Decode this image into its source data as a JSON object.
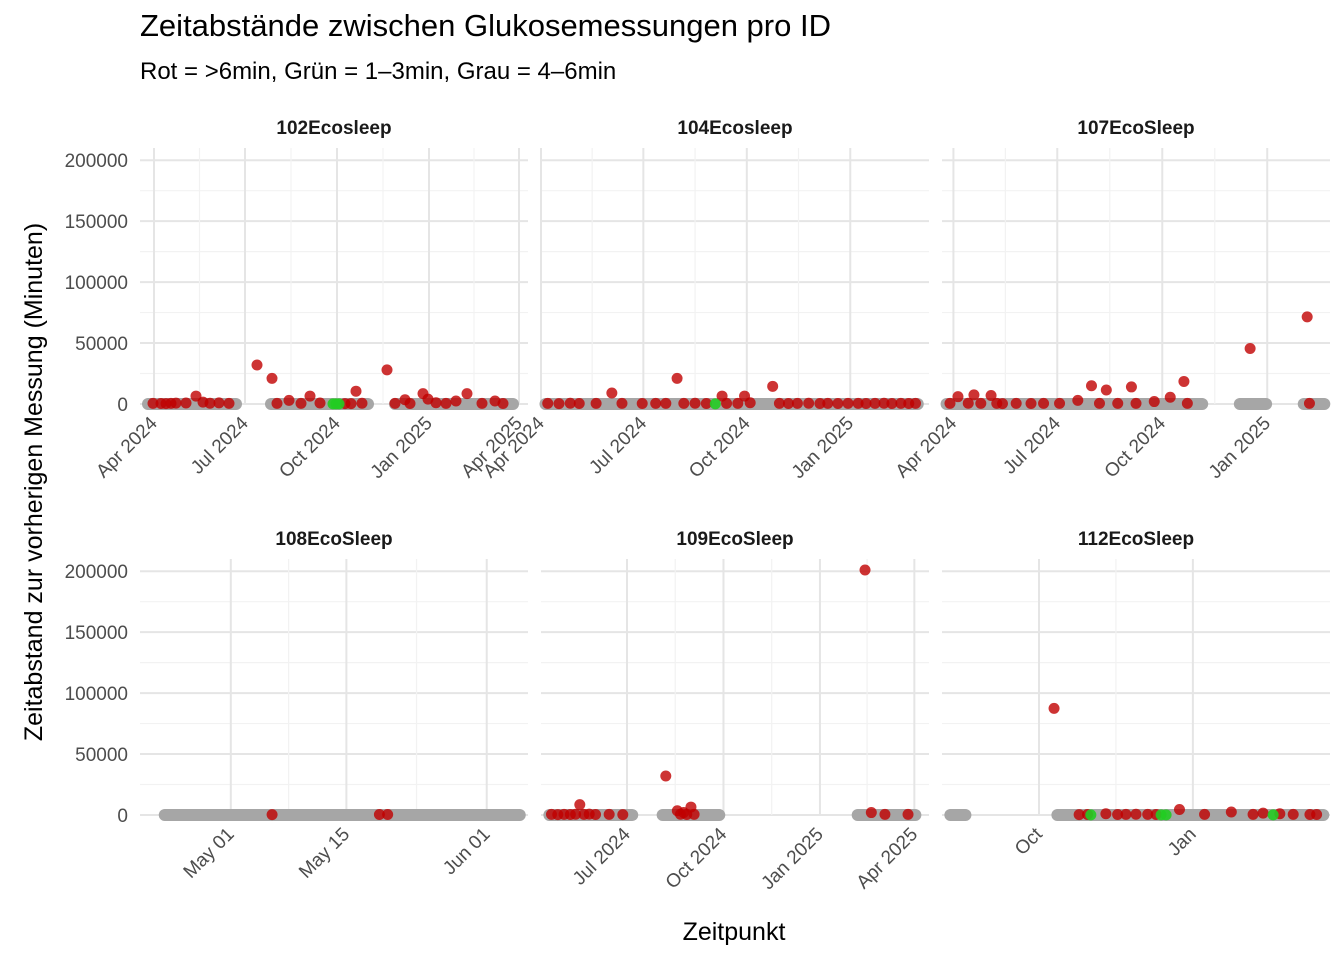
{
  "title": "Zeitabstände zwischen Glukosemessungen pro ID",
  "subtitle": "Rot = >6min, Grün = 1–3min, Grau = 4–6min",
  "xlabel": "Zeitpunkt",
  "ylabel": "Zeitabstand zur vorherigen Messung (Minuten)",
  "colors": {
    "red": "#c00000",
    "green": "#22cc22",
    "grey": "#a6a6a6",
    "grid_major": "#e5e5e5",
    "grid_minor": "#f2f2f2"
  },
  "chart_data": [
    {
      "type": "scatter",
      "id": "102Ecosleep",
      "ylim": [
        0,
        210000
      ],
      "y_ticks": [
        0,
        50000,
        100000,
        150000,
        200000
      ],
      "x_ticks": [
        {
          "date": "2024-04-01",
          "label": "Apr 2024"
        },
        {
          "date": "2024-07-01",
          "label": "Jul 2024"
        },
        {
          "date": "2024-10-01",
          "label": "Oct 2024"
        },
        {
          "date": "2025-01-01",
          "label": "Jan 2025"
        },
        {
          "date": "2025-04-01",
          "label": "Apr 2025"
        }
      ],
      "xlim": [
        "2024-03-18",
        "2025-04-10"
      ],
      "grey_segments": [
        [
          "2024-03-26",
          "2024-06-22"
        ],
        [
          "2024-07-27",
          "2024-11-01"
        ],
        [
          "2024-11-28",
          "2025-03-26"
        ]
      ],
      "red_points": [
        {
          "x": "2024-03-31",
          "y": 500
        },
        {
          "x": "2024-04-08",
          "y": 400
        },
        {
          "x": "2024-04-13",
          "y": 300
        },
        {
          "x": "2024-04-18",
          "y": 500
        },
        {
          "x": "2024-04-23",
          "y": 700
        },
        {
          "x": "2024-05-03",
          "y": 800
        },
        {
          "x": "2024-05-13",
          "y": 6500
        },
        {
          "x": "2024-05-20",
          "y": 1500
        },
        {
          "x": "2024-05-27",
          "y": 600
        },
        {
          "x": "2024-06-05",
          "y": 900
        },
        {
          "x": "2024-06-15",
          "y": 500
        },
        {
          "x": "2024-07-13",
          "y": 32000
        },
        {
          "x": "2024-07-28",
          "y": 21000
        },
        {
          "x": "2024-08-02",
          "y": 500
        },
        {
          "x": "2024-08-14",
          "y": 3000
        },
        {
          "x": "2024-08-26",
          "y": 500
        },
        {
          "x": "2024-09-04",
          "y": 6500
        },
        {
          "x": "2024-09-14",
          "y": 800
        },
        {
          "x": "2024-10-09",
          "y": 300
        },
        {
          "x": "2024-10-15",
          "y": 300
        },
        {
          "x": "2024-10-20",
          "y": 10500
        },
        {
          "x": "2024-10-26",
          "y": 600
        },
        {
          "x": "2024-11-20",
          "y": 28000
        },
        {
          "x": "2024-11-28",
          "y": 500
        },
        {
          "x": "2024-12-08",
          "y": 3500
        },
        {
          "x": "2024-12-13",
          "y": 400
        },
        {
          "x": "2024-12-26",
          "y": 8500
        },
        {
          "x": "2024-12-31",
          "y": 4000
        },
        {
          "x": "2025-01-08",
          "y": 1000
        },
        {
          "x": "2025-01-18",
          "y": 500
        },
        {
          "x": "2025-01-28",
          "y": 2500
        },
        {
          "x": "2025-02-08",
          "y": 8500
        },
        {
          "x": "2025-02-23",
          "y": 500
        },
        {
          "x": "2025-03-08",
          "y": 2500
        },
        {
          "x": "2025-03-16",
          "y": 400
        }
      ],
      "green_points": [
        {
          "x": "2024-09-27",
          "y": 100
        },
        {
          "x": "2024-09-30",
          "y": 100
        },
        {
          "x": "2024-10-03",
          "y": 100
        }
      ]
    },
    {
      "type": "scatter",
      "id": "104Ecosleep",
      "ylim": [
        0,
        210000
      ],
      "y_ticks": [
        0,
        50000,
        100000,
        150000,
        200000
      ],
      "x_ticks": [
        {
          "date": "2024-04-01",
          "label": "Apr 2024"
        },
        {
          "date": "2024-07-01",
          "label": "Jul 2024"
        },
        {
          "date": "2024-10-01",
          "label": "Oct 2024"
        },
        {
          "date": "2025-01-01",
          "label": "Jan 2025"
        }
      ],
      "xlim": [
        "2024-04-01",
        "2025-03-12"
      ],
      "grey_segments": [
        [
          "2024-04-05",
          "2025-03-02"
        ]
      ],
      "red_points": [
        {
          "x": "2024-04-07",
          "y": 500
        },
        {
          "x": "2024-04-17",
          "y": 300
        },
        {
          "x": "2024-04-27",
          "y": 600
        },
        {
          "x": "2024-05-05",
          "y": 400
        },
        {
          "x": "2024-05-20",
          "y": 500
        },
        {
          "x": "2024-06-03",
          "y": 9000
        },
        {
          "x": "2024-06-12",
          "y": 500
        },
        {
          "x": "2024-06-30",
          "y": 400
        },
        {
          "x": "2024-07-12",
          "y": 500
        },
        {
          "x": "2024-07-21",
          "y": 500
        },
        {
          "x": "2024-07-31",
          "y": 21000
        },
        {
          "x": "2024-08-06",
          "y": 500
        },
        {
          "x": "2024-08-16",
          "y": 600
        },
        {
          "x": "2024-08-26",
          "y": 400
        },
        {
          "x": "2024-09-09",
          "y": 6500
        },
        {
          "x": "2024-09-13",
          "y": 500
        },
        {
          "x": "2024-09-23",
          "y": 500
        },
        {
          "x": "2024-09-29",
          "y": 6500
        },
        {
          "x": "2024-10-04",
          "y": 1000
        },
        {
          "x": "2024-10-24",
          "y": 14500
        },
        {
          "x": "2024-10-30",
          "y": 500
        },
        {
          "x": "2024-11-07",
          "y": 400
        },
        {
          "x": "2024-11-15",
          "y": 500
        },
        {
          "x": "2024-11-25",
          "y": 600
        },
        {
          "x": "2024-12-05",
          "y": 400
        },
        {
          "x": "2024-12-12",
          "y": 500
        },
        {
          "x": "2024-12-21",
          "y": 400
        },
        {
          "x": "2024-12-30",
          "y": 500
        },
        {
          "x": "2025-01-08",
          "y": 500
        },
        {
          "x": "2025-01-15",
          "y": 400
        },
        {
          "x": "2025-01-23",
          "y": 500
        },
        {
          "x": "2025-01-31",
          "y": 600
        },
        {
          "x": "2025-02-07",
          "y": 400
        },
        {
          "x": "2025-02-15",
          "y": 500
        },
        {
          "x": "2025-02-22",
          "y": 400
        },
        {
          "x": "2025-02-28",
          "y": 500
        }
      ],
      "green_points": [
        {
          "x": "2024-09-03",
          "y": 100
        }
      ]
    },
    {
      "type": "scatter",
      "id": "107EcoSleep",
      "ylim": [
        0,
        210000
      ],
      "y_ticks": [
        0,
        50000,
        100000,
        150000,
        200000
      ],
      "x_ticks": [
        {
          "date": "2024-04-01",
          "label": "Apr 2024"
        },
        {
          "date": "2024-07-01",
          "label": "Jul 2024"
        },
        {
          "date": "2024-10-01",
          "label": "Oct 2024"
        },
        {
          "date": "2025-01-01",
          "label": "Jan 2025"
        }
      ],
      "xlim": [
        "2024-03-22",
        "2025-02-25"
      ],
      "grey_segments": [
        [
          "2024-03-26",
          "2024-11-05"
        ],
        [
          "2024-12-08",
          "2024-12-31"
        ],
        [
          "2025-02-02",
          "2025-02-20"
        ]
      ],
      "red_points": [
        {
          "x": "2024-03-29",
          "y": 500
        },
        {
          "x": "2024-04-05",
          "y": 6000
        },
        {
          "x": "2024-04-14",
          "y": 600
        },
        {
          "x": "2024-04-19",
          "y": 7500
        },
        {
          "x": "2024-04-25",
          "y": 500
        },
        {
          "x": "2024-05-04",
          "y": 7000
        },
        {
          "x": "2024-05-09",
          "y": 500
        },
        {
          "x": "2024-05-14",
          "y": 300
        },
        {
          "x": "2024-05-26",
          "y": 500
        },
        {
          "x": "2024-06-08",
          "y": 400
        },
        {
          "x": "2024-06-19",
          "y": 500
        },
        {
          "x": "2024-07-03",
          "y": 500
        },
        {
          "x": "2024-07-19",
          "y": 3000
        },
        {
          "x": "2024-07-31",
          "y": 15000
        },
        {
          "x": "2024-08-07",
          "y": 500
        },
        {
          "x": "2024-08-13",
          "y": 11500
        },
        {
          "x": "2024-08-23",
          "y": 500
        },
        {
          "x": "2024-09-04",
          "y": 14000
        },
        {
          "x": "2024-09-08",
          "y": 500
        },
        {
          "x": "2024-09-24",
          "y": 2000
        },
        {
          "x": "2024-10-08",
          "y": 5500
        },
        {
          "x": "2024-10-20",
          "y": 18500
        },
        {
          "x": "2024-10-23",
          "y": 500
        },
        {
          "x": "2024-12-17",
          "y": 45500
        },
        {
          "x": "2025-02-05",
          "y": 71500
        },
        {
          "x": "2025-02-07",
          "y": 500
        }
      ],
      "green_points": []
    },
    {
      "type": "scatter",
      "id": "108EcoSleep",
      "ylim": [
        0,
        210000
      ],
      "y_ticks": [
        0,
        50000,
        100000,
        150000,
        200000
      ],
      "x_ticks": [
        {
          "date": "2025-05-01",
          "label": "May 01"
        },
        {
          "date": "2025-05-15",
          "label": "May 15"
        },
        {
          "date": "2025-06-01",
          "label": "Jun 01"
        }
      ],
      "xlim": [
        "2025-04-20",
        "2025-06-06"
      ],
      "grey_segments": [
        [
          "2025-04-23",
          "2025-06-05"
        ]
      ],
      "red_points": [
        {
          "x": "2025-05-06",
          "y": 300
        },
        {
          "x": "2025-05-19",
          "y": 400
        },
        {
          "x": "2025-05-20",
          "y": 400
        }
      ],
      "green_points": []
    },
    {
      "type": "scatter",
      "id": "109EcoSleep",
      "ylim": [
        0,
        210000
      ],
      "y_ticks": [
        0,
        50000,
        100000,
        150000,
        200000
      ],
      "x_ticks": [
        {
          "date": "2024-07-01",
          "label": "Jul 2024"
        },
        {
          "date": "2024-10-01",
          "label": "Oct 2024"
        },
        {
          "date": "2025-01-01",
          "label": "Jan 2025"
        },
        {
          "date": "2025-04-01",
          "label": "Apr 2025"
        }
      ],
      "xlim": [
        "2024-04-10",
        "2025-04-15"
      ],
      "grey_segments": [
        [
          "2024-04-18",
          "2024-07-06"
        ],
        [
          "2024-08-04",
          "2024-09-27"
        ],
        [
          "2025-02-06",
          "2025-04-02"
        ]
      ],
      "red_points": [
        {
          "x": "2024-04-20",
          "y": 500
        },
        {
          "x": "2024-04-26",
          "y": 300
        },
        {
          "x": "2024-05-02",
          "y": 500
        },
        {
          "x": "2024-05-08",
          "y": 400
        },
        {
          "x": "2024-05-13",
          "y": 600
        },
        {
          "x": "2024-05-17",
          "y": 8500
        },
        {
          "x": "2024-05-21",
          "y": 500
        },
        {
          "x": "2024-05-26",
          "y": 700
        },
        {
          "x": "2024-06-01",
          "y": 400
        },
        {
          "x": "2024-06-14",
          "y": 500
        },
        {
          "x": "2024-06-27",
          "y": 300
        },
        {
          "x": "2024-08-07",
          "y": 32000
        },
        {
          "x": "2024-08-18",
          "y": 3500
        },
        {
          "x": "2024-08-21",
          "y": 600
        },
        {
          "x": "2024-08-24",
          "y": 2000
        },
        {
          "x": "2024-08-27",
          "y": 400
        },
        {
          "x": "2024-08-31",
          "y": 6500
        },
        {
          "x": "2024-09-03",
          "y": 500
        },
        {
          "x": "2025-02-13",
          "y": 201000
        },
        {
          "x": "2025-02-19",
          "y": 2000
        },
        {
          "x": "2025-03-04",
          "y": 500
        },
        {
          "x": "2025-03-26",
          "y": 500
        }
      ],
      "green_points": []
    },
    {
      "type": "scatter",
      "id": "112EcoSleep",
      "ylim": [
        0,
        210000
      ],
      "y_ticks": [
        0,
        50000,
        100000,
        150000,
        200000
      ],
      "x_ticks": [
        {
          "date": "2024-10-01",
          "label": "Oct"
        },
        {
          "date": "2025-01-01",
          "label": "Jan"
        }
      ],
      "xlim": [
        "2024-08-04",
        "2025-03-24"
      ],
      "grey_segments": [
        [
          "2024-08-09",
          "2024-08-18"
        ],
        [
          "2024-10-12",
          "2025-03-20"
        ]
      ],
      "red_points": [
        {
          "x": "2024-10-10",
          "y": 87500
        },
        {
          "x": "2024-10-25",
          "y": 300
        },
        {
          "x": "2024-10-30",
          "y": 400
        },
        {
          "x": "2024-11-10",
          "y": 1000
        },
        {
          "x": "2024-11-17",
          "y": 400
        },
        {
          "x": "2024-11-22",
          "y": 500
        },
        {
          "x": "2024-11-28",
          "y": 600
        },
        {
          "x": "2024-12-05",
          "y": 500
        },
        {
          "x": "2024-12-10",
          "y": 400
        },
        {
          "x": "2024-12-24",
          "y": 4500
        },
        {
          "x": "2025-01-08",
          "y": 500
        },
        {
          "x": "2025-01-24",
          "y": 2500
        },
        {
          "x": "2025-02-06",
          "y": 500
        },
        {
          "x": "2025-02-12",
          "y": 1500
        },
        {
          "x": "2025-02-22",
          "y": 1000
        },
        {
          "x": "2025-03-02",
          "y": 500
        },
        {
          "x": "2025-03-12",
          "y": 400
        },
        {
          "x": "2025-03-16",
          "y": 400
        }
      ],
      "green_points": [
        {
          "x": "2024-11-01",
          "y": 100
        },
        {
          "x": "2024-12-13",
          "y": 100
        },
        {
          "x": "2024-12-16",
          "y": 100
        },
        {
          "x": "2025-02-18",
          "y": 100
        }
      ]
    }
  ]
}
